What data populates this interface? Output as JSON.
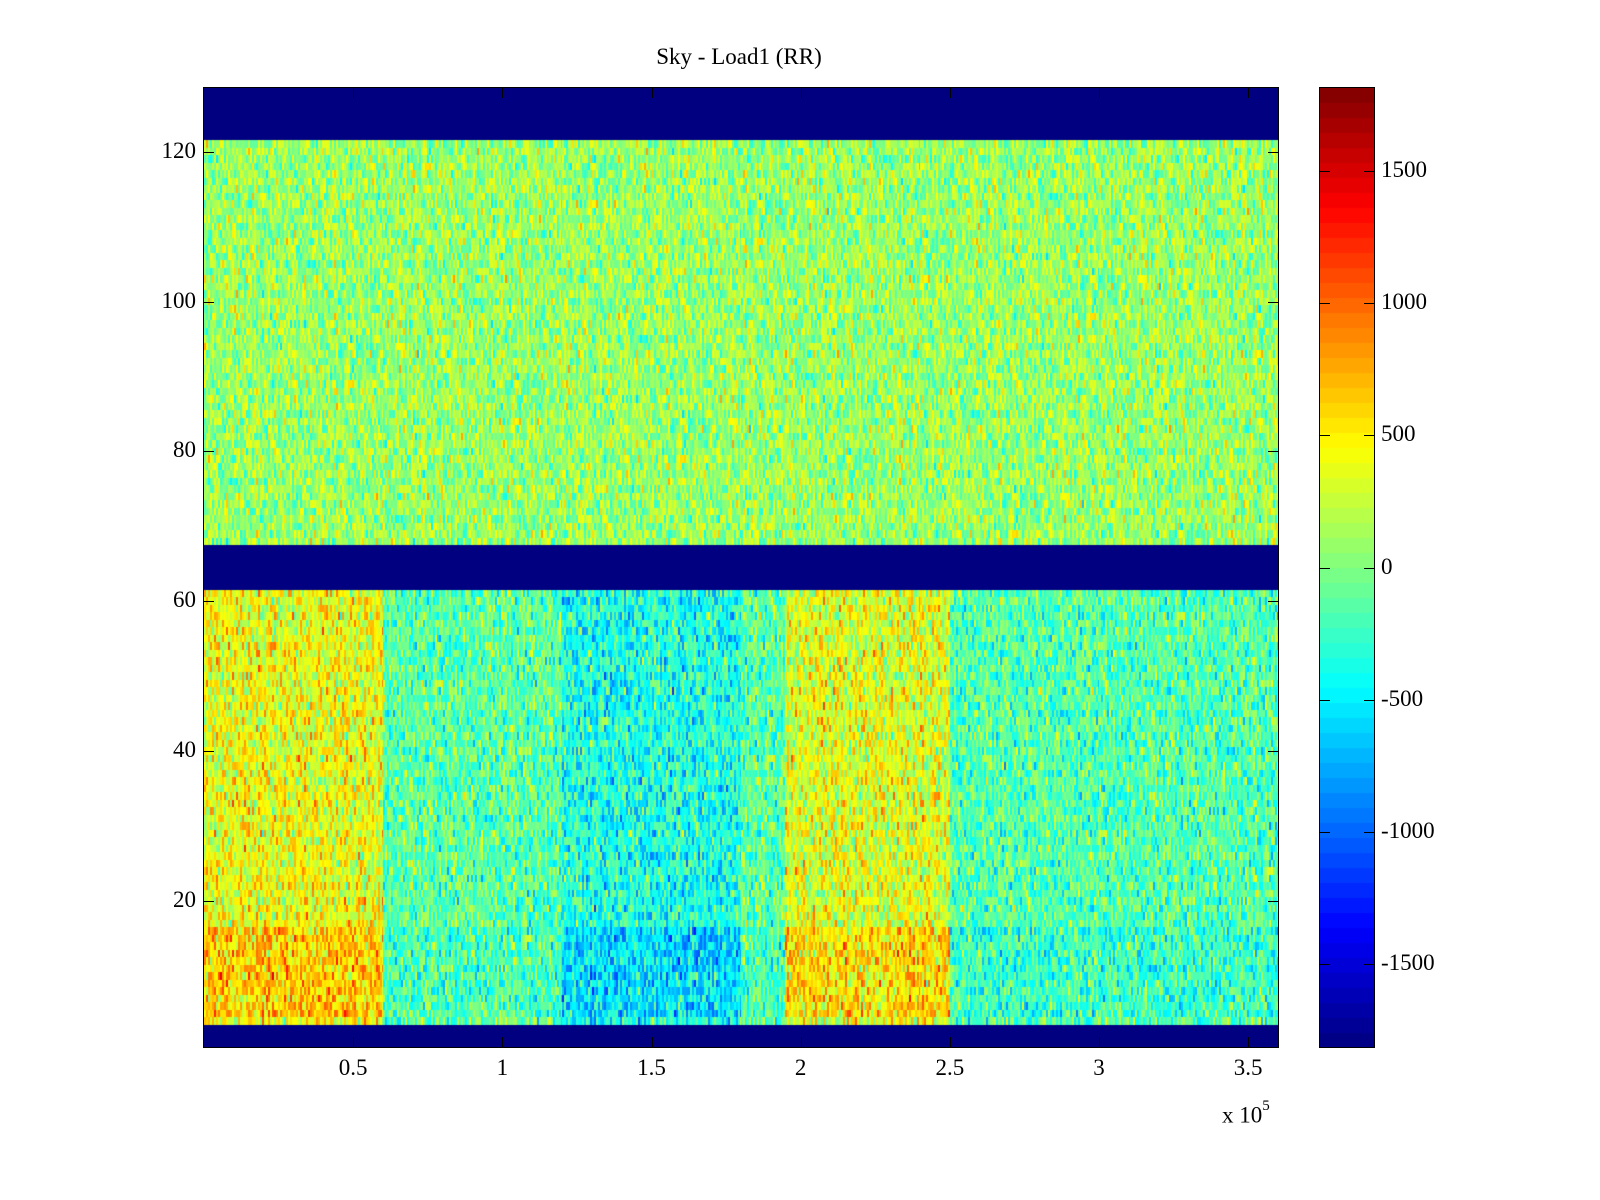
{
  "chart_data": {
    "type": "heatmap",
    "title": "Sky - Load1 (RR)",
    "xlabel": "",
    "ylabel": "",
    "x_multiplier_label": "x 10",
    "x_multiplier_exponent": "5",
    "xlim": [
      0,
      360000
    ],
    "ylim": [
      0.5,
      128.5
    ],
    "x_ticks": [
      50000,
      100000,
      150000,
      200000,
      250000,
      300000,
      350000
    ],
    "x_tick_labels": [
      "0.5",
      "1",
      "1.5",
      "2",
      "2.5",
      "3",
      "3.5"
    ],
    "y_ticks": [
      20,
      40,
      60,
      80,
      100,
      120
    ],
    "y_tick_labels": [
      "20",
      "40",
      "60",
      "80",
      "100",
      "120"
    ],
    "rows": 128,
    "colormap": "jet",
    "clim": [
      -1815,
      1815
    ],
    "colorbar_ticks": [
      -1500,
      -1000,
      -500,
      0,
      500,
      1000,
      1500
    ],
    "colorbar_tick_labels": [
      "-1500",
      "-1000",
      "-500",
      "0",
      "500",
      "1000",
      "1500"
    ],
    "masked_rows": [
      [
        1,
        3
      ],
      [
        62,
        67
      ],
      [
        122,
        128
      ]
    ],
    "masked_value": -1815,
    "regions": [
      {
        "rows": [
          68,
          121
        ],
        "mean": 100,
        "spread": 250
      },
      {
        "rows": [
          4,
          61
        ],
        "x_range": [
          0,
          60000
        ],
        "mean": 400,
        "spread": 280
      },
      {
        "rows": [
          4,
          61
        ],
        "x_range": [
          120000,
          180000
        ],
        "mean": -350,
        "spread": 280
      },
      {
        "rows": [
          4,
          61
        ],
        "x_range": [
          195000,
          250000
        ],
        "mean": 350,
        "spread": 280
      },
      {
        "rows": [
          4,
          61
        ],
        "x_range": [
          250000,
          360000
        ],
        "mean": -150,
        "spread": 260
      }
    ],
    "grid": false,
    "colorbar_placement": "right"
  }
}
